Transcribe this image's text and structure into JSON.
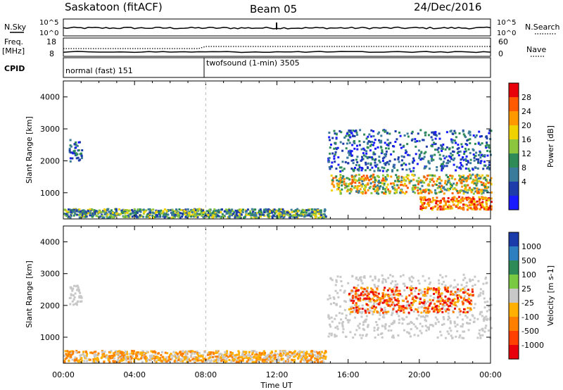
{
  "header": {
    "title_left": "Saskatoon (fitACF)",
    "title_center": "Beam 05",
    "title_right": "24/Dec/2016"
  },
  "summary": {
    "nsky_label": "N.Sky",
    "nsearch_label": "N.Search",
    "freq_label_top": "Freq.",
    "freq_label_bottom": "[MHz]",
    "nave_label": "Nave",
    "cpid_label": "CPID",
    "noise_ticks": [
      "10^5",
      "10^0"
    ],
    "freq_ticks": [
      "18",
      "8"
    ],
    "nave_ticks": [
      "60",
      "0"
    ]
  },
  "cpid": {
    "segments": [
      {
        "label": "normal (fast) 151",
        "start_hour": 0
      },
      {
        "label": "twofsound (1-min) 3505",
        "start_hour": 8
      }
    ]
  },
  "chart_data": [
    {
      "type": "heatmap",
      "name": "power",
      "xlabel": "",
      "ylabel": "Slant Range [km]",
      "xlim": [
        0,
        24
      ],
      "ylim": [
        180,
        4500
      ],
      "x_ticks": [
        "00:00",
        "04:00",
        "08:00",
        "12:00",
        "16:00",
        "20:00",
        "00:00"
      ],
      "y_ticks": [
        1000,
        2000,
        3000,
        4000
      ],
      "colorbar": {
        "label": "Power [dB]",
        "ticks": [
          "28",
          "24",
          "20",
          "16",
          "12",
          "8",
          "4"
        ],
        "colors": [
          "#e8000b",
          "#ff5a00",
          "#ff9900",
          "#f0d200",
          "#8cc63f",
          "#2e8b57",
          "#3a7a9a",
          "#1e3caa",
          "#1a1aff"
        ]
      },
      "structures": [
        {
          "from": 0,
          "to": 14.7,
          "range": [
            250,
            520
          ],
          "level": "low-medium"
        },
        {
          "from": 0.3,
          "to": 1.0,
          "range": [
            2000,
            2700
          ],
          "level": "low"
        },
        {
          "from": 15,
          "to": 24,
          "range": [
            1000,
            1600
          ],
          "level": "medium-high"
        },
        {
          "from": 20,
          "to": 24,
          "range": [
            500,
            900
          ],
          "level": "high"
        },
        {
          "from": 14.8,
          "to": 24,
          "range": [
            1700,
            3000
          ],
          "level": "low"
        }
      ]
    },
    {
      "type": "heatmap",
      "name": "velocity",
      "xlabel": "Time UT",
      "ylabel": "Slant Range [km]",
      "xlim": [
        0,
        24
      ],
      "ylim": [
        180,
        4500
      ],
      "x_ticks": [
        "00:00",
        "04:00",
        "08:00",
        "12:00",
        "16:00",
        "20:00",
        "00:00"
      ],
      "y_ticks": [
        1000,
        2000,
        3000,
        4000
      ],
      "colorbar": {
        "label": "Velocity [m s-1]",
        "ticks": [
          "1000",
          "500",
          "100",
          "25",
          "-25",
          "-100",
          "-500",
          "-1000"
        ],
        "colors": [
          "#1a3caa",
          "#2e7fbf",
          "#2e8b57",
          "#7ac943",
          "#c8c8c8",
          "#ffb000",
          "#ff8000",
          "#ff4000",
          "#e8000b"
        ]
      },
      "structures": [
        {
          "from": 0,
          "to": 14.7,
          "range": [
            250,
            600
          ],
          "level": "slow-negative"
        },
        {
          "from": 0.3,
          "to": 1.0,
          "range": [
            2000,
            2700
          ],
          "level": "ground-scatter"
        },
        {
          "from": 14.8,
          "to": 24,
          "range": [
            1000,
            3000
          ],
          "level": "ground-scatter"
        },
        {
          "from": 16,
          "to": 23,
          "range": [
            1800,
            2600
          ],
          "level": "negative"
        }
      ]
    }
  ]
}
